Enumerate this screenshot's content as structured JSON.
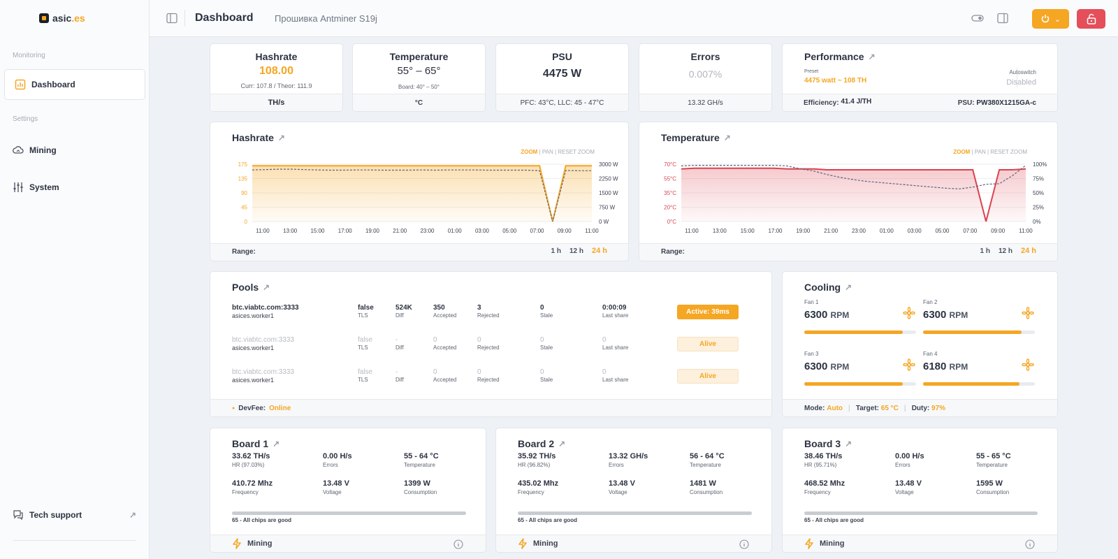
{
  "sidebar": {
    "logo_main": "asic",
    "logo_tld": ".es",
    "sections": {
      "monitoring": "Monitoring",
      "settings": "Settings"
    },
    "items": [
      {
        "label": "Dashboard",
        "icon": "chart-icon",
        "active": true
      },
      {
        "label": "Mining",
        "icon": "cloud-icon"
      },
      {
        "label": "System",
        "icon": "sliders-icon"
      }
    ],
    "support": "Tech support"
  },
  "header": {
    "title": "Dashboard",
    "subtitle": "Прошивка Antminer S19j"
  },
  "stats": {
    "hashrate": {
      "label": "Hashrate",
      "value": "108.00",
      "sub": "Curr: 107.8 / Theor: 111.9",
      "foot": "TH/s"
    },
    "temperature": {
      "label": "Temperature",
      "value": "55° – 65°",
      "sub": "Board: 40° – 50°",
      "foot": "°C"
    },
    "psu": {
      "label": "PSU",
      "value": "4475 W",
      "foot": "PFC: 43°C, LLC: 45 - 47°C"
    },
    "errors": {
      "label": "Errors",
      "value": "0.007%",
      "foot": "13.32 GH/s"
    },
    "performance": {
      "label": "Performance",
      "preset_label": "Preset",
      "preset": "4475 watt ~ 108 TH",
      "autoswitch_label": "Autoswitch",
      "autoswitch": "Disabled",
      "efficiency_label": "Efficiency:",
      "efficiency": "41.4 J/TH",
      "psu_label": "PSU:",
      "psu": "PW380X1215GA-c"
    }
  },
  "zoom": {
    "zoom": "ZOOM",
    "pan": "PAN",
    "reset": "RESET ZOOM"
  },
  "range": {
    "label": "Range:",
    "options": [
      "1 h",
      "12 h",
      "24 h"
    ],
    "selected": "24 h"
  },
  "chart_data": [
    {
      "type": "area",
      "title": "Hashrate",
      "x_ticks": [
        "11:00",
        "13:00",
        "15:00",
        "17:00",
        "19:00",
        "21:00",
        "23:00",
        "01:00",
        "03:00",
        "05:00",
        "07:00",
        "09:00",
        "11:00"
      ],
      "y_ticks": [
        "0",
        "45",
        "90",
        "135",
        "175"
      ],
      "y2_ticks": [
        "0 W",
        "750 W",
        "1500 W",
        "2250 W",
        "3000 W"
      ],
      "ylim": [
        0,
        180
      ],
      "y2lim": [
        0,
        3000
      ],
      "series": [
        {
          "values": [
            175,
            175,
            175,
            175,
            175,
            175,
            175,
            175,
            175,
            175,
            175,
            175,
            175,
            175,
            175,
            175,
            175,
            175,
            175,
            175,
            175,
            175,
            175,
            0,
            175,
            175,
            175
          ],
          "color": "#f5a623"
        },
        {
          "values": [
            2700,
            2720,
            2740,
            2740,
            2720,
            2700,
            2690,
            2690,
            2700,
            2700,
            2690,
            2690,
            2690,
            2700,
            2690,
            2700,
            2700,
            2700,
            2690,
            2690,
            2690,
            2690,
            2660,
            0,
            2670,
            2660,
            2660
          ],
          "color": "#5a6480",
          "style": "dashed"
        }
      ]
    },
    {
      "type": "area",
      "title": "Temperature",
      "x_ticks": [
        "11:00",
        "13:00",
        "15:00",
        "17:00",
        "19:00",
        "21:00",
        "23:00",
        "01:00",
        "03:00",
        "05:00",
        "07:00",
        "09:00",
        "11:00"
      ],
      "y_ticks": [
        "0°C",
        "20°C",
        "35°C",
        "55°C",
        "70°C"
      ],
      "y2_ticks": [
        "0%",
        "25%",
        "50%",
        "75%",
        "100%"
      ],
      "ylim": [
        0,
        72
      ],
      "y2lim": [
        0,
        100
      ],
      "series": [
        {
          "values": [
            66,
            67,
            67,
            67,
            67,
            67,
            67,
            67,
            66,
            66,
            66,
            65,
            65,
            65,
            65,
            65,
            65,
            65,
            65,
            65,
            65,
            65,
            65,
            0,
            65,
            65,
            66
          ],
          "color": "#d9434f"
        },
        {
          "values": [
            97,
            98,
            98,
            98,
            98,
            98,
            98,
            98,
            97,
            92,
            88,
            82,
            77,
            73,
            70,
            68,
            66,
            64,
            62,
            60,
            58,
            57,
            60,
            65,
            66,
            80,
            98
          ],
          "color": "#5a6480",
          "style": "dashed"
        }
      ]
    }
  ],
  "pools": {
    "title": "Pools",
    "col_labels": {
      "tls": "TLS",
      "diff": "Diff",
      "accepted": "Accepted",
      "rejected": "Rejected",
      "stale": "Stale",
      "last": "Last share"
    },
    "rows": [
      {
        "url": "btc.viabtc.com:3333",
        "worker": "asices.worker1",
        "tls": "false",
        "diff": "524K",
        "accepted": "350",
        "rejected": "3",
        "stale": "0",
        "last": "0:00:09",
        "status": "Active: 39ms",
        "active": true
      },
      {
        "url": "btc.viabtc.com:3333",
        "worker": "asices.worker1",
        "tls": "false",
        "diff": "-",
        "accepted": "0",
        "rejected": "0",
        "stale": "0",
        "last": "0",
        "status": "Alive",
        "active": false
      },
      {
        "url": "btc.viabtc.com:3333",
        "worker": "asices.worker1",
        "tls": "false",
        "diff": "-",
        "accepted": "0",
        "rejected": "0",
        "stale": "0",
        "last": "0",
        "status": "Alive",
        "active": false
      }
    ],
    "devfee_label": "DevFee:",
    "devfee": "Online"
  },
  "cooling": {
    "title": "Cooling",
    "fans": [
      {
        "label": "Fan 1",
        "rpm": "6300",
        "unit": "RPM",
        "fill": 0.88
      },
      {
        "label": "Fan 2",
        "rpm": "6300",
        "unit": "RPM",
        "fill": 0.88
      },
      {
        "label": "Fan 3",
        "rpm": "6300",
        "unit": "RPM",
        "fill": 0.88
      },
      {
        "label": "Fan 4",
        "rpm": "6180",
        "unit": "RPM",
        "fill": 0.86
      }
    ],
    "mode_label": "Mode:",
    "mode": "Auto",
    "target_label": "Target:",
    "target": "65 °C",
    "duty_label": "Duty:",
    "duty": "97%"
  },
  "boards": [
    {
      "title": "Board 1",
      "hr": "33.62 TH/s",
      "hr_label": "HR (97.03%)",
      "errors": "0.00 H/s",
      "errors_label": "Errors",
      "temp": "55 - 64 °C",
      "temp_label": "Temperature",
      "freq": "410.72 Mhz",
      "freq_label": "Frequency",
      "volt": "13.48 V",
      "volt_label": "Voltage",
      "cons": "1399 W",
      "cons_label": "Consumption",
      "chips": "65 - All chips are good",
      "status": "Mining"
    },
    {
      "title": "Board 2",
      "hr": "35.92 TH/s",
      "hr_label": "HR (96.82%)",
      "errors": "13.32 GH/s",
      "errors_label": "Errors",
      "temp": "56 - 64 °C",
      "temp_label": "Temperature",
      "freq": "435.02 Mhz",
      "freq_label": "Frequency",
      "volt": "13.48 V",
      "volt_label": "Voltage",
      "cons": "1481 W",
      "cons_label": "Consumption",
      "chips": "65 - All chips are good",
      "status": "Mining"
    },
    {
      "title": "Board 3",
      "hr": "38.46 TH/s",
      "hr_label": "HR (95.71%)",
      "errors": "0.00 H/s",
      "errors_label": "Errors",
      "temp": "55 - 65 °C",
      "temp_label": "Temperature",
      "freq": "468.52 Mhz",
      "freq_label": "Frequency",
      "volt": "13.48 V",
      "volt_label": "Voltage",
      "cons": "1595 W",
      "cons_label": "Consumption",
      "chips": "65 - All chips are good",
      "status": "Mining"
    }
  ]
}
